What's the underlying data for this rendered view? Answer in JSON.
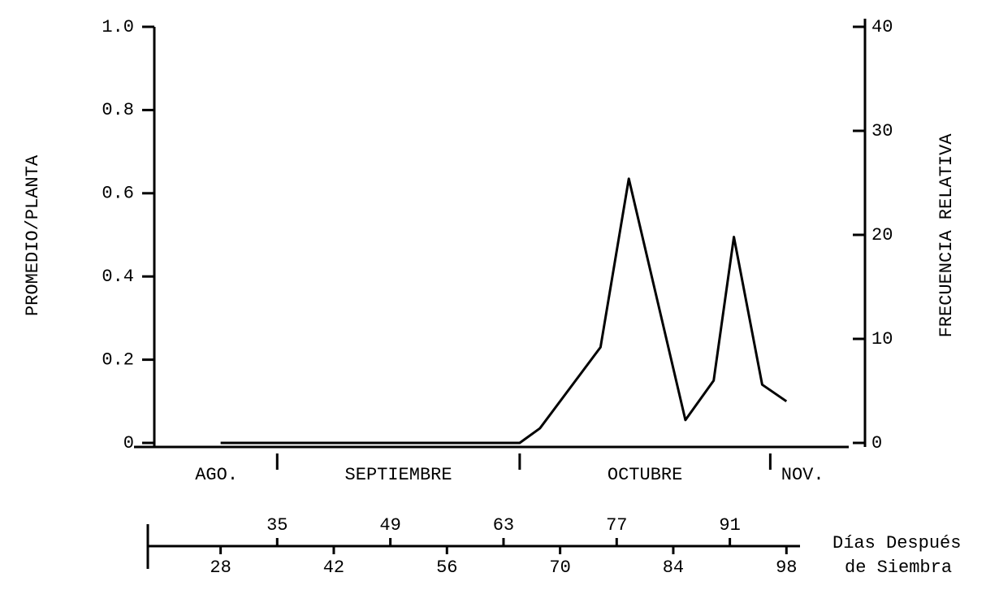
{
  "chart_data": {
    "type": "line",
    "ylabel": "PROMEDIO/PLANTA",
    "y2label": "FRECUENCIA RELATIVA",
    "xlabel": [
      "Días Después",
      "de Siembra"
    ],
    "x": [
      28,
      65,
      67.5,
      75,
      78.5,
      85.5,
      89,
      91.5,
      95,
      98
    ],
    "values": [
      0,
      0,
      0.035,
      0.23,
      0.635,
      0.055,
      0.15,
      0.495,
      0.14,
      0.1
    ],
    "color": "#000000",
    "xlim": [
      20,
      104
    ],
    "xticks": [
      28,
      35,
      42,
      49,
      56,
      63,
      70,
      77,
      84,
      91,
      98
    ],
    "ylim": [
      0,
      1
    ],
    "yticks": [
      0,
      0.2,
      0.4,
      0.6,
      0.8,
      {
        "value": 1,
        "label": "1.0"
      }
    ],
    "y2lim": [
      0,
      40
    ],
    "y2ticks": [
      0,
      10,
      20,
      30,
      40
    ],
    "months": [
      "AGO.",
      "SEPTIEMBRE",
      "OCTUBRE",
      "NOV."
    ],
    "month_boundaries": [
      35,
      65,
      96
    ]
  }
}
